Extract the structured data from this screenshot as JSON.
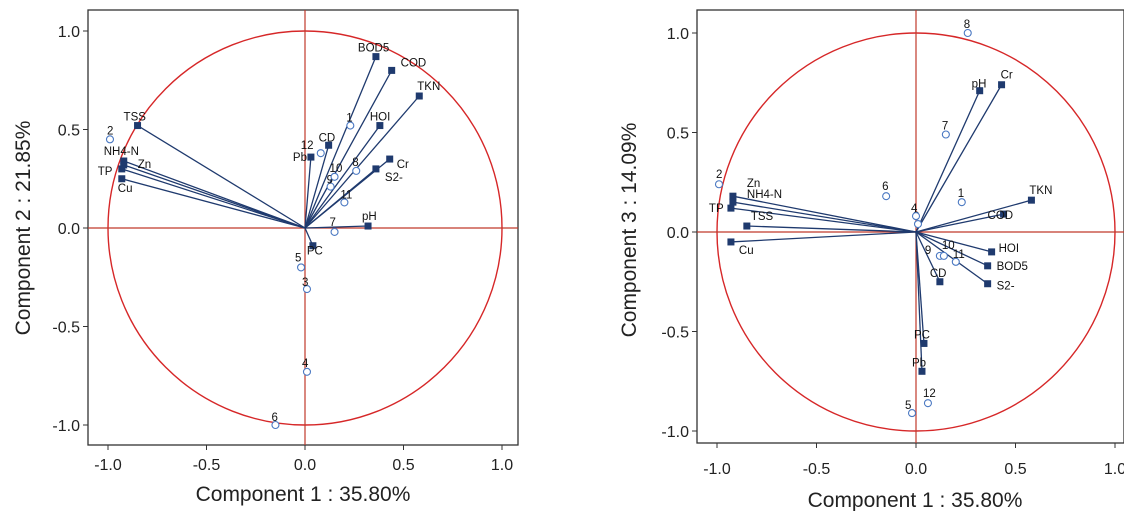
{
  "chart_data": [
    {
      "type": "scatter",
      "xlabel": "Component 1 : 35.80%",
      "ylabel": "Component 2 : 21.85%",
      "xlim": [
        -1.0,
        1.0
      ],
      "ylim": [
        -1.0,
        1.0
      ],
      "xticks": [
        "-1.0",
        "-0.5",
        "0.0",
        "0.5",
        "1.0"
      ],
      "yticks": [
        "1.0",
        "0.5",
        "0.0",
        "-0.5",
        "-1.0"
      ],
      "grid": false,
      "unit_circle": true,
      "colors": {
        "circle": "#d62728",
        "axes_lines": "#c0392b",
        "vectors": "#1f3a6e",
        "cases": "#4a78c2"
      },
      "variables": [
        {
          "name": "BOD5",
          "x": 0.36,
          "y": 0.87
        },
        {
          "name": "COD",
          "x": 0.44,
          "y": 0.8
        },
        {
          "name": "TKN",
          "x": 0.58,
          "y": 0.67
        },
        {
          "name": "HOI",
          "x": 0.38,
          "y": 0.52
        },
        {
          "name": "CD",
          "x": 0.12,
          "y": 0.42
        },
        {
          "name": "Pb",
          "x": 0.03,
          "y": 0.36
        },
        {
          "name": "Cr",
          "x": 0.43,
          "y": 0.35
        },
        {
          "name": "S2-",
          "x": 0.36,
          "y": 0.3
        },
        {
          "name": "pH",
          "x": 0.32,
          "y": 0.01
        },
        {
          "name": "PC",
          "x": 0.04,
          "y": -0.09
        },
        {
          "name": "TSS",
          "x": -0.85,
          "y": 0.52
        },
        {
          "name": "NH4-N",
          "x": -0.92,
          "y": 0.34
        },
        {
          "name": "Zn",
          "x": -0.92,
          "y": 0.32
        },
        {
          "name": "TP",
          "x": -0.93,
          "y": 0.3
        },
        {
          "name": "Cu",
          "x": -0.93,
          "y": 0.25
        }
      ],
      "cases": [
        {
          "name": "1",
          "x": 0.23,
          "y": 0.52
        },
        {
          "name": "2",
          "x": -0.99,
          "y": 0.45
        },
        {
          "name": "3",
          "x": 0.01,
          "y": -0.31
        },
        {
          "name": "4",
          "x": 0.01,
          "y": -0.73
        },
        {
          "name": "5",
          "x": -0.02,
          "y": -0.2
        },
        {
          "name": "6",
          "x": -0.15,
          "y": -1.0
        },
        {
          "name": "7",
          "x": 0.15,
          "y": -0.02
        },
        {
          "name": "8",
          "x": 0.26,
          "y": 0.29
        },
        {
          "name": "9",
          "x": 0.13,
          "y": 0.21
        },
        {
          "name": "10",
          "x": 0.15,
          "y": 0.26
        },
        {
          "name": "11",
          "x": 0.2,
          "y": 0.13
        },
        {
          "name": "12",
          "x": 0.08,
          "y": 0.38
        }
      ]
    },
    {
      "type": "scatter",
      "xlabel": "Component 1 : 35.80%",
      "ylabel": "Component 3 : 14.09%",
      "xlim": [
        -1.0,
        1.0
      ],
      "ylim": [
        -1.0,
        1.0
      ],
      "xticks": [
        "-1.0",
        "-0.5",
        "0.0",
        "0.5",
        "1.0"
      ],
      "yticks": [
        "1.0",
        "0.5",
        "0.0",
        "-0.5",
        "-1.0"
      ],
      "grid": false,
      "unit_circle": true,
      "colors": {
        "circle": "#d62728",
        "axes_lines": "#c0392b",
        "vectors": "#1f3a6e",
        "cases": "#4a78c2"
      },
      "variables": [
        {
          "name": "pH",
          "x": 0.32,
          "y": 0.71
        },
        {
          "name": "Cr",
          "x": 0.43,
          "y": 0.74
        },
        {
          "name": "TKN",
          "x": 0.58,
          "y": 0.16
        },
        {
          "name": "COD",
          "x": 0.44,
          "y": 0.09
        },
        {
          "name": "HOI",
          "x": 0.38,
          "y": -0.1
        },
        {
          "name": "BOD5",
          "x": 0.36,
          "y": -0.17
        },
        {
          "name": "S2-",
          "x": 0.36,
          "y": -0.26
        },
        {
          "name": "CD",
          "x": 0.12,
          "y": -0.25
        },
        {
          "name": "PC",
          "x": 0.04,
          "y": -0.56
        },
        {
          "name": "Pb",
          "x": 0.03,
          "y": -0.7
        },
        {
          "name": "Zn",
          "x": -0.92,
          "y": 0.18
        },
        {
          "name": "NH4-N",
          "x": -0.92,
          "y": 0.15
        },
        {
          "name": "TP",
          "x": -0.93,
          "y": 0.12
        },
        {
          "name": "TSS",
          "x": -0.85,
          "y": 0.03
        },
        {
          "name": "Cu",
          "x": -0.93,
          "y": -0.05
        }
      ],
      "cases": [
        {
          "name": "1",
          "x": 0.23,
          "y": 0.15
        },
        {
          "name": "2",
          "x": -0.99,
          "y": 0.24
        },
        {
          "name": "3",
          "x": 0.01,
          "y": 0.04
        },
        {
          "name": "4",
          "x": 0.0,
          "y": 0.08
        },
        {
          "name": "5",
          "x": -0.02,
          "y": -0.91
        },
        {
          "name": "6",
          "x": -0.15,
          "y": 0.18
        },
        {
          "name": "7",
          "x": 0.15,
          "y": 0.49
        },
        {
          "name": "8",
          "x": 0.26,
          "y": 1.0
        },
        {
          "name": "9",
          "x": 0.12,
          "y": -0.12
        },
        {
          "name": "10",
          "x": 0.14,
          "y": -0.12
        },
        {
          "name": "11",
          "x": 0.2,
          "y": -0.15
        },
        {
          "name": "12",
          "x": 0.06,
          "y": -0.86
        }
      ]
    }
  ]
}
